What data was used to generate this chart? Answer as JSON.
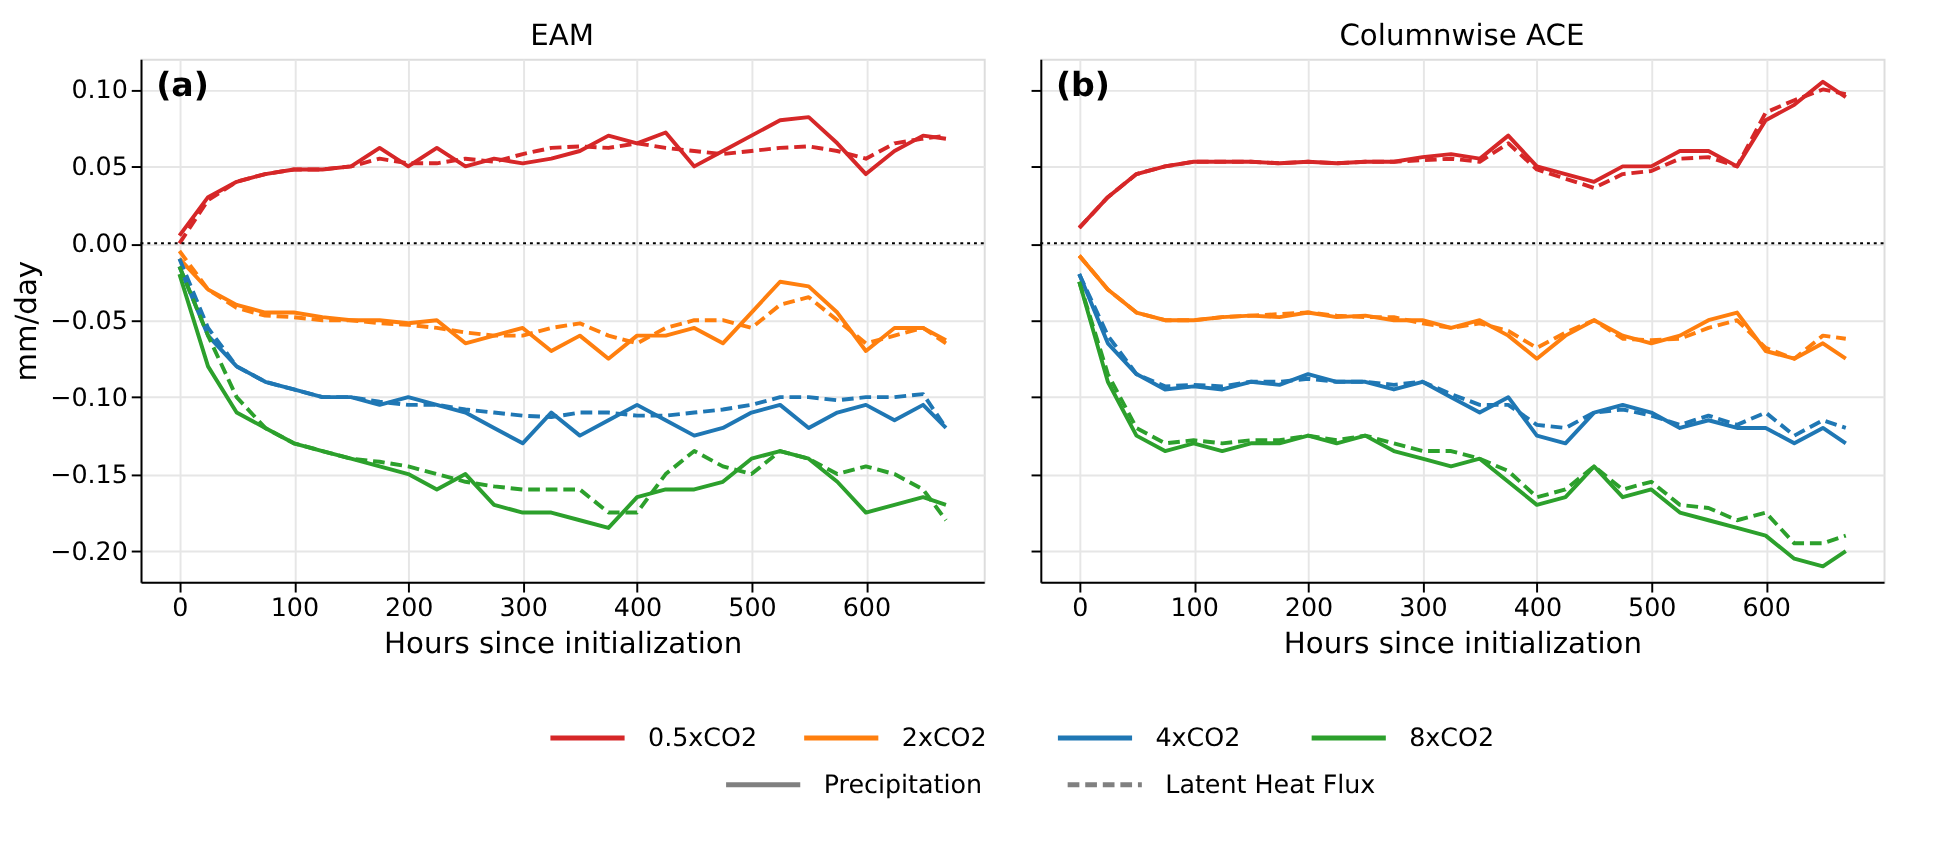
{
  "chart_data": [
    {
      "type": "line",
      "title": "EAM",
      "xlabel": "Hours since initialization",
      "ylabel": "mm/day",
      "annotations": [
        "(a)"
      ],
      "x": [
        0,
        25,
        50,
        75,
        100,
        125,
        150,
        175,
        200,
        225,
        250,
        275,
        300,
        325,
        350,
        375,
        400,
        425,
        450,
        475,
        500,
        525,
        550,
        575,
        600,
        625,
        650,
        670
      ],
      "xlim": [
        -34,
        703
      ],
      "ylim": [
        -0.22,
        0.12
      ],
      "xticks": [
        0,
        100,
        200,
        300,
        400,
        500,
        600
      ],
      "yticks": [
        {
          "value": 0.1,
          "label": "0.10"
        },
        {
          "value": 0.05,
          "label": "0.05"
        },
        {
          "value": 0,
          "label": "0.00"
        },
        {
          "value": -0.05,
          "label": "−0.05"
        },
        {
          "value": -0.1,
          "label": "−0.10"
        },
        {
          "value": -0.15,
          "label": "−0.15"
        },
        {
          "value": -0.2,
          "label": "−0.20"
        }
      ],
      "grid": true,
      "legend": "bottom",
      "ref_lines": [
        {
          "axis": "y",
          "value": 0,
          "color": "#000000",
          "line_style": "dotted"
        }
      ],
      "series": [
        {
          "name": "0.5xCO2",
          "color": "#d62728",
          "line_style": "solid",
          "values": [
            0.005,
            0.03,
            0.04,
            0.045,
            0.048,
            0.048,
            0.05,
            0.062,
            0.05,
            0.062,
            0.05,
            0.055,
            0.052,
            0.055,
            0.06,
            0.07,
            0.065,
            0.072,
            0.05,
            0.06,
            0.07,
            0.08,
            0.082,
            0.065,
            0.045,
            0.06,
            0.07,
            0.068
          ]
        },
        {
          "color": "#d62728",
          "line_style": "dashed",
          "values": [
            0.0,
            0.028,
            0.04,
            0.045,
            0.048,
            0.048,
            0.05,
            0.055,
            0.052,
            0.052,
            0.055,
            0.053,
            0.058,
            0.062,
            0.063,
            0.062,
            0.065,
            0.062,
            0.06,
            0.058,
            0.06,
            0.062,
            0.063,
            0.06,
            0.055,
            0.065,
            0.068,
            0.07
          ]
        },
        {
          "name": "2xCO2",
          "color": "#ff7f0e",
          "line_style": "solid",
          "values": [
            -0.01,
            -0.03,
            -0.04,
            -0.045,
            -0.045,
            -0.048,
            -0.05,
            -0.05,
            -0.052,
            -0.05,
            -0.065,
            -0.06,
            -0.055,
            -0.07,
            -0.06,
            -0.075,
            -0.06,
            -0.06,
            -0.055,
            -0.065,
            -0.045,
            -0.025,
            -0.028,
            -0.045,
            -0.07,
            -0.055,
            -0.055,
            -0.063
          ]
        },
        {
          "color": "#ff7f0e",
          "line_style": "dashed",
          "values": [
            -0.005,
            -0.03,
            -0.042,
            -0.047,
            -0.048,
            -0.05,
            -0.05,
            -0.052,
            -0.053,
            -0.055,
            -0.058,
            -0.06,
            -0.06,
            -0.055,
            -0.052,
            -0.06,
            -0.065,
            -0.055,
            -0.05,
            -0.05,
            -0.055,
            -0.04,
            -0.035,
            -0.05,
            -0.065,
            -0.06,
            -0.055,
            -0.065
          ]
        },
        {
          "name": "4xCO2",
          "color": "#1f77b4",
          "line_style": "solid",
          "values": [
            -0.015,
            -0.06,
            -0.08,
            -0.09,
            -0.095,
            -0.1,
            -0.1,
            -0.105,
            -0.1,
            -0.105,
            -0.11,
            -0.12,
            -0.13,
            -0.11,
            -0.125,
            -0.115,
            -0.105,
            -0.115,
            -0.125,
            -0.12,
            -0.11,
            -0.105,
            -0.12,
            -0.11,
            -0.105,
            -0.115,
            -0.105,
            -0.12
          ]
        },
        {
          "color": "#1f77b4",
          "line_style": "dashed",
          "values": [
            -0.01,
            -0.055,
            -0.08,
            -0.09,
            -0.095,
            -0.1,
            -0.1,
            -0.103,
            -0.105,
            -0.105,
            -0.108,
            -0.11,
            -0.112,
            -0.113,
            -0.11,
            -0.11,
            -0.112,
            -0.112,
            -0.11,
            -0.108,
            -0.105,
            -0.1,
            -0.1,
            -0.102,
            -0.1,
            -0.1,
            -0.098,
            -0.12
          ]
        },
        {
          "name": "8xCO2",
          "color": "#2ca02c",
          "line_style": "solid",
          "values": [
            -0.02,
            -0.08,
            -0.11,
            -0.12,
            -0.13,
            -0.135,
            -0.14,
            -0.145,
            -0.15,
            -0.16,
            -0.15,
            -0.17,
            -0.175,
            -0.175,
            -0.18,
            -0.185,
            -0.165,
            -0.16,
            -0.16,
            -0.155,
            -0.14,
            -0.135,
            -0.14,
            -0.155,
            -0.175,
            -0.17,
            -0.165,
            -0.17
          ]
        },
        {
          "color": "#2ca02c",
          "line_style": "dashed",
          "values": [
            -0.015,
            -0.06,
            -0.1,
            -0.12,
            -0.13,
            -0.135,
            -0.14,
            -0.142,
            -0.145,
            -0.15,
            -0.155,
            -0.158,
            -0.16,
            -0.16,
            -0.16,
            -0.175,
            -0.175,
            -0.15,
            -0.135,
            -0.145,
            -0.15,
            -0.135,
            -0.14,
            -0.15,
            -0.145,
            -0.15,
            -0.16,
            -0.18
          ]
        }
      ]
    },
    {
      "type": "line",
      "title": "Columnwise ACE",
      "xlabel": "Hours since initialization",
      "annotations": [
        "(b)",
        "Precipitation",
        "Latent Heat Flux"
      ],
      "x": [
        0,
        25,
        50,
        75,
        100,
        125,
        150,
        175,
        200,
        225,
        250,
        275,
        300,
        325,
        350,
        375,
        400,
        425,
        450,
        475,
        500,
        525,
        550,
        575,
        600,
        625,
        650,
        670
      ],
      "xlim": [
        -34,
        703
      ],
      "ylim": [
        -0.22,
        0.12
      ],
      "xticks": [
        0,
        100,
        200,
        300,
        400,
        500,
        600
      ],
      "yticks": [
        0.1,
        0.05,
        0,
        -0.05,
        -0.1,
        -0.15,
        -0.2
      ],
      "tick_labels": "x",
      "grid": true,
      "ref_lines": [
        {
          "axis": "y",
          "value": 0,
          "color": "#000000",
          "line_style": "dotted"
        }
      ],
      "series": [
        {
          "color": "#d62728",
          "line_style": "solid",
          "values": [
            0.01,
            0.03,
            0.045,
            0.05,
            0.053,
            0.053,
            0.053,
            0.052,
            0.053,
            0.052,
            0.053,
            0.053,
            0.056,
            0.058,
            0.055,
            0.07,
            0.05,
            0.045,
            0.04,
            0.05,
            0.05,
            0.06,
            0.06,
            0.05,
            0.08,
            0.09,
            0.105,
            0.095
          ]
        },
        {
          "color": "#d62728",
          "line_style": "dashed",
          "values": [
            0.01,
            0.03,
            0.045,
            0.05,
            0.053,
            0.053,
            0.053,
            0.052,
            0.053,
            0.052,
            0.053,
            0.053,
            0.054,
            0.055,
            0.053,
            0.065,
            0.048,
            0.042,
            0.036,
            0.045,
            0.047,
            0.055,
            0.056,
            0.05,
            0.085,
            0.093,
            0.1,
            0.097
          ]
        },
        {
          "color": "#ff7f0e",
          "line_style": "solid",
          "values": [
            -0.008,
            -0.03,
            -0.045,
            -0.05,
            -0.05,
            -0.048,
            -0.047,
            -0.048,
            -0.045,
            -0.048,
            -0.047,
            -0.05,
            -0.05,
            -0.055,
            -0.05,
            -0.06,
            -0.075,
            -0.06,
            -0.05,
            -0.06,
            -0.065,
            -0.06,
            -0.05,
            -0.045,
            -0.07,
            -0.075,
            -0.065,
            -0.075
          ]
        },
        {
          "color": "#ff7f0e",
          "line_style": "dashed",
          "values": [
            -0.008,
            -0.03,
            -0.045,
            -0.05,
            -0.05,
            -0.048,
            -0.047,
            -0.046,
            -0.045,
            -0.047,
            -0.048,
            -0.048,
            -0.052,
            -0.055,
            -0.052,
            -0.057,
            -0.068,
            -0.058,
            -0.05,
            -0.062,
            -0.063,
            -0.062,
            -0.055,
            -0.05,
            -0.068,
            -0.075,
            -0.06,
            -0.062
          ]
        },
        {
          "color": "#1f77b4",
          "line_style": "solid",
          "values": [
            -0.02,
            -0.065,
            -0.085,
            -0.095,
            -0.093,
            -0.095,
            -0.09,
            -0.092,
            -0.085,
            -0.09,
            -0.09,
            -0.095,
            -0.09,
            -0.1,
            -0.11,
            -0.1,
            -0.125,
            -0.13,
            -0.11,
            -0.105,
            -0.11,
            -0.12,
            -0.115,
            -0.12,
            -0.12,
            -0.13,
            -0.12,
            -0.13
          ]
        },
        {
          "color": "#1f77b4",
          "line_style": "dashed",
          "values": [
            -0.02,
            -0.06,
            -0.085,
            -0.093,
            -0.092,
            -0.093,
            -0.09,
            -0.09,
            -0.088,
            -0.09,
            -0.09,
            -0.092,
            -0.09,
            -0.098,
            -0.105,
            -0.105,
            -0.118,
            -0.12,
            -0.11,
            -0.108,
            -0.112,
            -0.118,
            -0.112,
            -0.118,
            -0.11,
            -0.125,
            -0.115,
            -0.12
          ]
        },
        {
          "color": "#2ca02c",
          "line_style": "solid",
          "values": [
            -0.025,
            -0.09,
            -0.125,
            -0.135,
            -0.13,
            -0.135,
            -0.13,
            -0.13,
            -0.125,
            -0.13,
            -0.125,
            -0.135,
            -0.14,
            -0.145,
            -0.14,
            -0.155,
            -0.17,
            -0.165,
            -0.145,
            -0.165,
            -0.16,
            -0.175,
            -0.18,
            -0.185,
            -0.19,
            -0.205,
            -0.21,
            -0.2
          ]
        },
        {
          "color": "#2ca02c",
          "line_style": "dashed",
          "values": [
            -0.025,
            -0.085,
            -0.12,
            -0.13,
            -0.128,
            -0.13,
            -0.128,
            -0.128,
            -0.125,
            -0.128,
            -0.125,
            -0.13,
            -0.135,
            -0.135,
            -0.14,
            -0.148,
            -0.165,
            -0.16,
            -0.145,
            -0.16,
            -0.155,
            -0.17,
            -0.172,
            -0.18,
            -0.175,
            -0.195,
            -0.195,
            -0.19
          ]
        }
      ]
    }
  ]
}
